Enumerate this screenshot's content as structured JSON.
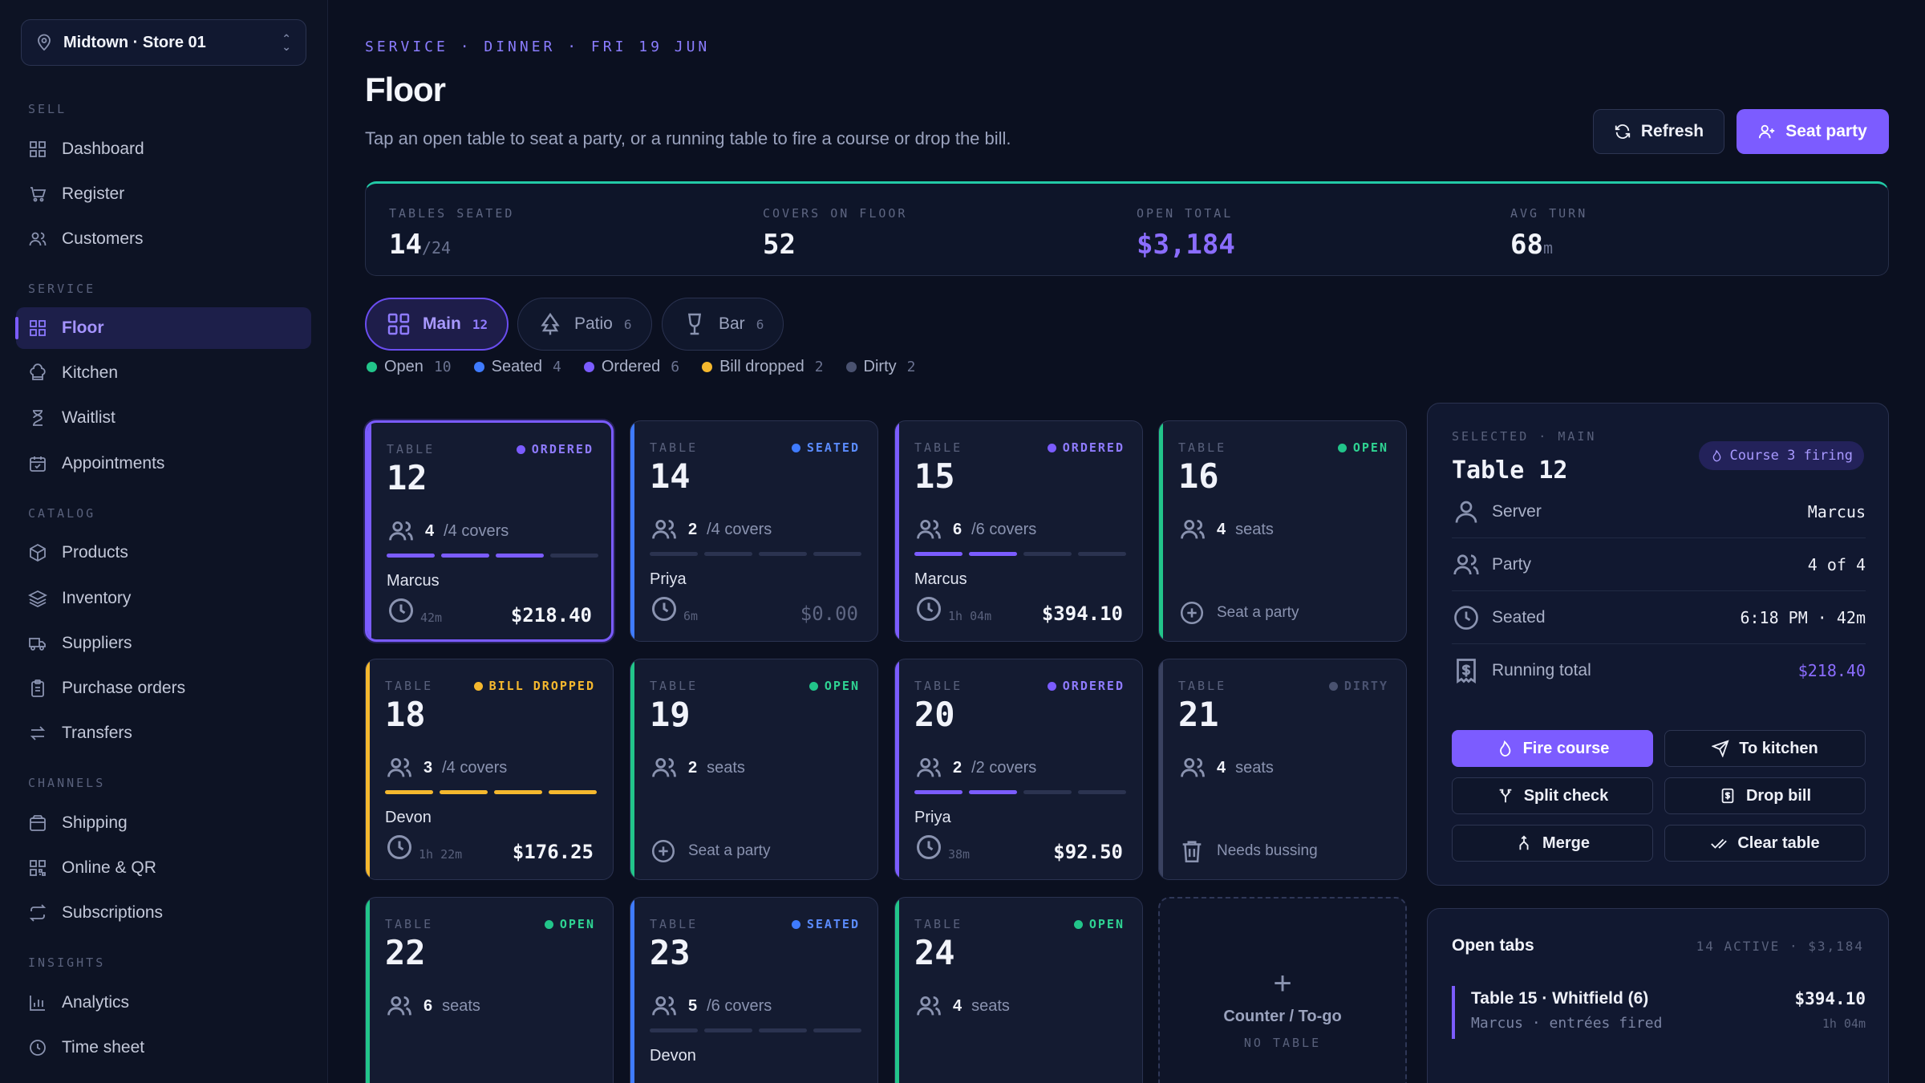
{
  "store": {
    "name": "Midtown · Store 01"
  },
  "nav": {
    "sections": [
      {
        "title": "SELL",
        "items": [
          "Dashboard",
          "Register",
          "Customers"
        ]
      },
      {
        "title": "SERVICE",
        "items": [
          "Floor",
          "Kitchen",
          "Waitlist",
          "Appointments"
        ]
      },
      {
        "title": "CATALOG",
        "items": [
          "Products",
          "Inventory",
          "Suppliers",
          "Purchase orders",
          "Transfers"
        ]
      },
      {
        "title": "CHANNELS",
        "items": [
          "Shipping",
          "Online & QR",
          "Subscriptions"
        ]
      },
      {
        "title": "INSIGHTS",
        "items": [
          "Analytics",
          "Time sheet"
        ]
      }
    ],
    "active": "Floor"
  },
  "header": {
    "eyebrow": "SERVICE · DINNER · FRI 19 JUN",
    "title": "Floor",
    "subtitle": "Tap an open table to seat a party, or a running table to fire a course or drop the bill.",
    "refresh_label": "Refresh",
    "seat_label": "Seat party"
  },
  "stats": [
    {
      "label": "TABLES SEATED",
      "value": "14",
      "suffix": "/24"
    },
    {
      "label": "COVERS ON FLOOR",
      "value": "52",
      "suffix": ""
    },
    {
      "label": "OPEN TOTAL",
      "value": "$3,184",
      "suffix": ""
    },
    {
      "label": "AVG TURN",
      "value": "68",
      "suffix": "m"
    }
  ],
  "areas": [
    {
      "label": "Main",
      "count": "12"
    },
    {
      "label": "Patio",
      "count": "6"
    },
    {
      "label": "Bar",
      "count": "6"
    }
  ],
  "legend": [
    {
      "label": "Open",
      "count": "10",
      "color": "#22c58a"
    },
    {
      "label": "Seated",
      "count": "4",
      "color": "#3f7bff"
    },
    {
      "label": "Ordered",
      "count": "6",
      "color": "#7b5cff"
    },
    {
      "label": "Bill dropped",
      "count": "2",
      "color": "#f5b82e"
    },
    {
      "label": "Dirty",
      "count": "2",
      "color": "#4a5270"
    }
  ],
  "table_label": "TABLE",
  "tables": [
    {
      "num": "12",
      "status": "ORDERED",
      "covers": "4",
      "cap": "/4 covers",
      "progress": 3,
      "server": "Marcus",
      "time": "42m",
      "amount": "$218.40"
    },
    {
      "num": "14",
      "status": "SEATED",
      "covers": "2",
      "cap": "/4 covers",
      "progress": 0,
      "server": "Priya",
      "time": "6m",
      "amount": "$0.00"
    },
    {
      "num": "15",
      "status": "ORDERED",
      "covers": "6",
      "cap": "/6 covers",
      "progress": 2,
      "server": "Marcus",
      "time": "1h 04m",
      "amount": "$394.10"
    },
    {
      "num": "16",
      "status": "OPEN",
      "covers": "4",
      "cap": "seats",
      "action": "Seat a party"
    },
    {
      "num": "18",
      "status": "BILL DROPPED",
      "covers": "3",
      "cap": "/4 covers",
      "progress": 4,
      "server": "Devon",
      "time": "1h 22m",
      "amount": "$176.25"
    },
    {
      "num": "19",
      "status": "OPEN",
      "covers": "2",
      "cap": "seats",
      "action": "Seat a party"
    },
    {
      "num": "20",
      "status": "ORDERED",
      "covers": "2",
      "cap": "/2 covers",
      "progress": 2,
      "server": "Priya",
      "time": "38m",
      "amount": "$92.50"
    },
    {
      "num": "21",
      "status": "DIRTY",
      "covers": "4",
      "cap": "seats",
      "action": "Needs bussing"
    },
    {
      "num": "22",
      "status": "OPEN",
      "covers": "6",
      "cap": "seats"
    },
    {
      "num": "23",
      "status": "SEATED",
      "covers": "5",
      "cap": "/6 covers",
      "progress": 0,
      "server": "Devon"
    },
    {
      "num": "24",
      "status": "OPEN",
      "covers": "4",
      "cap": "seats"
    }
  ],
  "counter": {
    "label": "Counter / To-go",
    "sub": "NO TABLE"
  },
  "selected": {
    "eyebrow": "SELECTED · MAIN",
    "title": "Table 12",
    "badge": "Course 3 firing",
    "rows": [
      {
        "label": "Server",
        "value": "Marcus"
      },
      {
        "label": "Party",
        "value": "4 of 4"
      },
      {
        "label": "Seated",
        "value": "6:18 PM · 42m"
      },
      {
        "label": "Running total",
        "value": "$218.40"
      }
    ],
    "actions": [
      "Fire course",
      "To kitchen",
      "Split check",
      "Drop bill",
      "Merge",
      "Clear table"
    ]
  },
  "open_tabs": {
    "title": "Open tabs",
    "meta": "14 ACTIVE · $3,184",
    "items": [
      {
        "name": "Table 15 · Whitfield (6)",
        "sub": "Marcus · entrées fired",
        "amount": "$394.10",
        "time": "1h 04m"
      }
    ]
  }
}
